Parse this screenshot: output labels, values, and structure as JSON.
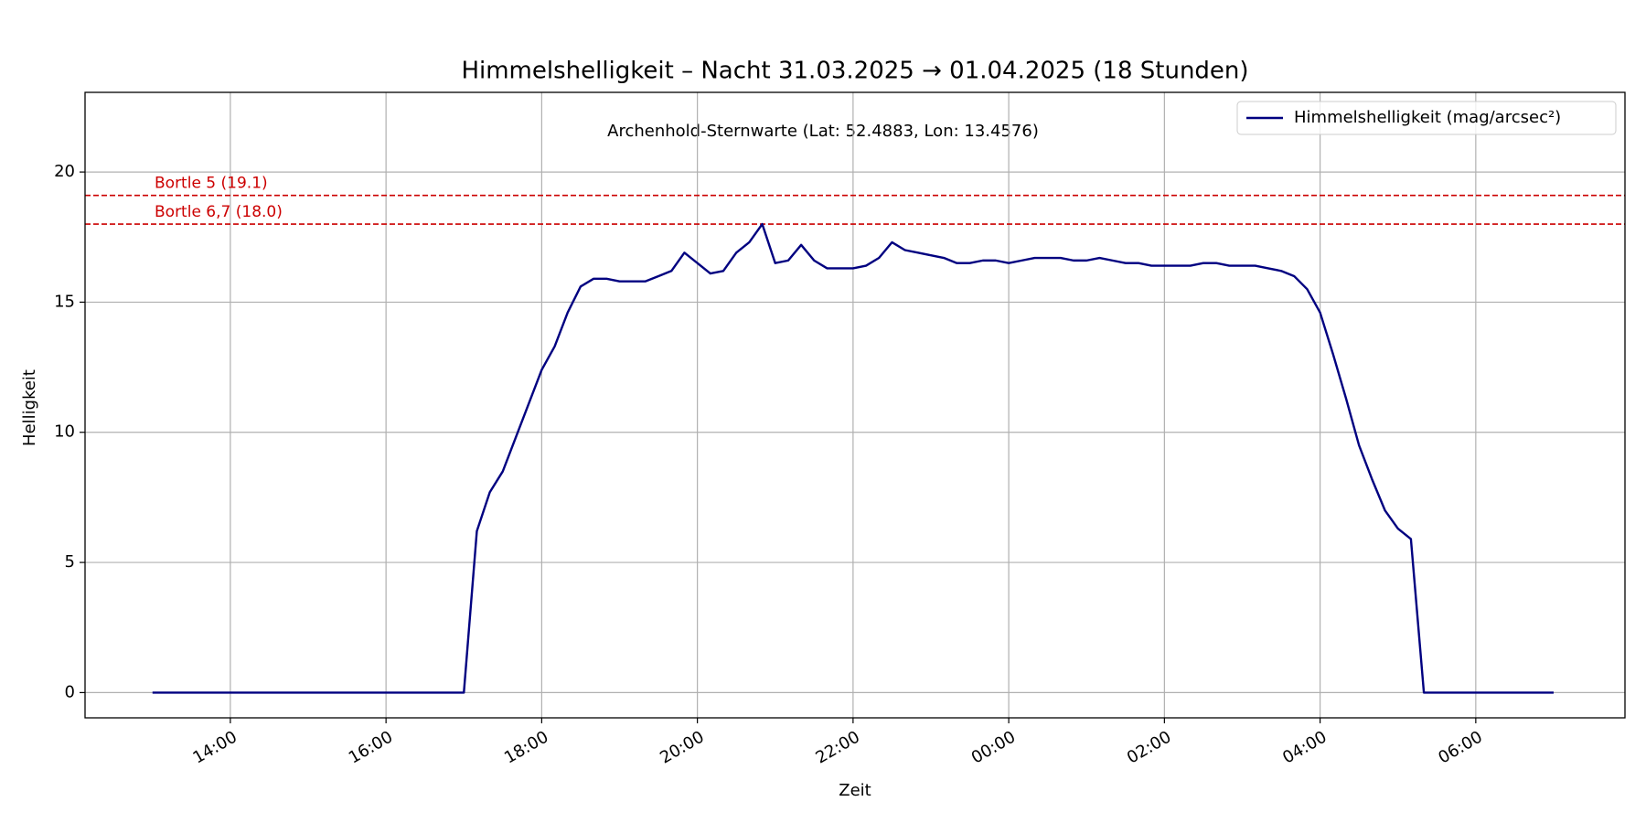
{
  "chart_data": {
    "type": "line",
    "title": "Himmelshelligkeit – Nacht 31.03.2025 → 01.04.2025 (18 Stunden)",
    "subtitle": "Archenhold-Sternwarte (Lat: 52.4883, Lon: 13.4576)",
    "x_label": "Zeit",
    "y_label": "Helligkeit",
    "x": [
      "13:00",
      "13:10",
      "13:20",
      "13:30",
      "13:40",
      "13:50",
      "14:00",
      "14:10",
      "14:20",
      "14:30",
      "14:40",
      "14:50",
      "15:00",
      "15:10",
      "15:20",
      "15:30",
      "15:40",
      "15:50",
      "16:00",
      "16:10",
      "16:20",
      "16:30",
      "16:40",
      "16:50",
      "17:00",
      "17:10",
      "17:20",
      "17:30",
      "17:40",
      "17:50",
      "18:00",
      "18:10",
      "18:20",
      "18:30",
      "18:40",
      "18:50",
      "19:00",
      "19:10",
      "19:20",
      "19:30",
      "19:40",
      "19:50",
      "20:00",
      "20:10",
      "20:20",
      "20:30",
      "20:40",
      "20:50",
      "21:00",
      "21:10",
      "21:20",
      "21:30",
      "21:40",
      "21:50",
      "22:00",
      "22:10",
      "22:20",
      "22:30",
      "22:40",
      "22:50",
      "23:00",
      "23:10",
      "23:20",
      "23:30",
      "23:40",
      "23:50",
      "00:00",
      "00:10",
      "00:20",
      "00:30",
      "00:40",
      "00:50",
      "01:00",
      "01:10",
      "01:20",
      "01:30",
      "01:40",
      "01:50",
      "02:00",
      "02:10",
      "02:20",
      "02:30",
      "02:40",
      "02:50",
      "03:00",
      "03:10",
      "03:20",
      "03:30",
      "03:40",
      "03:50",
      "04:00",
      "04:10",
      "04:20",
      "04:30",
      "04:40",
      "04:50",
      "05:00",
      "05:10",
      "05:20",
      "05:30",
      "05:40",
      "05:50",
      "06:00",
      "06:10",
      "06:20",
      "06:30",
      "06:40",
      "06:50",
      "07:00"
    ],
    "series": [
      {
        "name": "Himmelshelligkeit (mag/arcsec²)",
        "color": "#000080",
        "values": [
          0,
          0,
          0,
          0,
          0,
          0,
          0,
          0,
          0,
          0,
          0,
          0,
          0,
          0,
          0,
          0,
          0,
          0,
          0,
          0,
          0,
          0,
          0,
          0,
          0,
          6.2,
          7.7,
          8.5,
          9.8,
          11.1,
          12.4,
          13.3,
          14.6,
          15.6,
          15.9,
          15.9,
          15.8,
          15.8,
          15.8,
          16.0,
          16.2,
          16.9,
          16.5,
          16.1,
          16.2,
          16.9,
          17.3,
          18.0,
          16.5,
          16.6,
          17.2,
          16.6,
          16.3,
          16.3,
          16.3,
          16.4,
          16.7,
          17.3,
          17.0,
          16.9,
          16.8,
          16.7,
          16.5,
          16.5,
          16.6,
          16.6,
          16.5,
          16.6,
          16.7,
          16.7,
          16.7,
          16.6,
          16.6,
          16.7,
          16.6,
          16.5,
          16.5,
          16.4,
          16.4,
          16.4,
          16.4,
          16.5,
          16.5,
          16.4,
          16.4,
          16.4,
          16.3,
          16.2,
          16.0,
          15.5,
          14.6,
          13.0,
          11.3,
          9.5,
          8.2,
          7.0,
          6.3,
          5.9,
          0,
          0,
          0,
          0,
          0,
          0,
          0,
          0,
          0,
          0,
          0
        ]
      }
    ],
    "reference_lines": [
      {
        "value": 19.1,
        "label": "Bortle 5 (19.1)",
        "color": "#cc0000"
      },
      {
        "value": 18.0,
        "label": "Bortle 6,7 (18.0)",
        "color": "#cc0000"
      }
    ],
    "xlim": [
      "12:08",
      "07:55"
    ],
    "xticks": [
      "14:00",
      "16:00",
      "18:00",
      "20:00",
      "22:00",
      "00:00",
      "02:00",
      "04:00",
      "06:00"
    ],
    "ylim": [
      -0.97,
      23.06
    ],
    "yticks": [
      0,
      5,
      10,
      15,
      20
    ],
    "grid": true,
    "legend": "upper right"
  }
}
